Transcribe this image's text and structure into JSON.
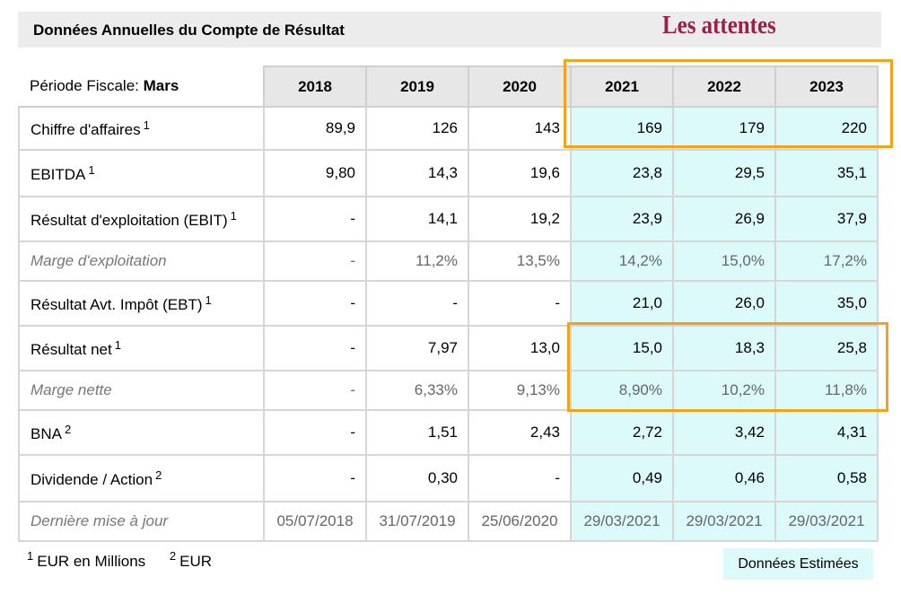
{
  "header": {
    "title": "Données Annuelles du Compte de Résultat",
    "annotation": "Les attentes"
  },
  "table": {
    "period_label": "Période Fiscale:",
    "period_value": "Mars",
    "years": [
      "2018",
      "2019",
      "2020",
      "2021",
      "2022",
      "2023"
    ],
    "rows": [
      {
        "label": "Chiffre d'affaires",
        "ref": "1",
        "values": [
          "89,9",
          "126",
          "143",
          "169",
          "179",
          "220"
        ]
      },
      {
        "label": "EBITDA",
        "ref": "1",
        "values": [
          "9,80",
          "14,3",
          "19,6",
          "23,8",
          "29,5",
          "35,1"
        ]
      },
      {
        "label": "Résultat d'exploitation (EBIT)",
        "ref": "1",
        "values": [
          "-",
          "14,1",
          "19,2",
          "23,9",
          "26,9",
          "37,9"
        ]
      },
      {
        "label": "Marge d'exploitation",
        "values": [
          "-",
          "11,2%",
          "13,5%",
          "14,2%",
          "15,0%",
          "17,2%"
        ]
      },
      {
        "label": "Résultat Avt. Impôt (EBT)",
        "ref": "1",
        "values": [
          "-",
          "-",
          "-",
          "21,0",
          "26,0",
          "35,0"
        ]
      },
      {
        "label": "Résultat net",
        "ref": "1",
        "values": [
          "-",
          "7,97",
          "13,0",
          "15,0",
          "18,3",
          "25,8"
        ]
      },
      {
        "label": "Marge nette",
        "values": [
          "-",
          "6,33%",
          "9,13%",
          "8,90%",
          "10,2%",
          "11,8%"
        ]
      },
      {
        "label": "BNA",
        "ref": "2",
        "values": [
          "-",
          "1,51",
          "2,43",
          "2,72",
          "3,42",
          "4,31"
        ]
      },
      {
        "label": "Dividende / Action",
        "ref": "2",
        "values": [
          "-",
          "0,30",
          "-",
          "0,49",
          "0,46",
          "0,58"
        ]
      },
      {
        "label": "Dernière mise à jour",
        "values": [
          "05/07/2018",
          "31/07/2019",
          "25/06/2020",
          "29/03/2021",
          "29/03/2021",
          "29/03/2021"
        ]
      }
    ]
  },
  "footnotes": [
    {
      "ref": "1",
      "text": "EUR en Millions"
    },
    {
      "ref": "2",
      "text": "EUR"
    }
  ],
  "legend": {
    "estimated_label": "Données Estimées"
  },
  "colors": {
    "estimated_bg": "#dcfaf9",
    "highlight_border": "#f5a21b",
    "annotation_text": "#9a1f4d",
    "header_bg": "#ececec"
  }
}
